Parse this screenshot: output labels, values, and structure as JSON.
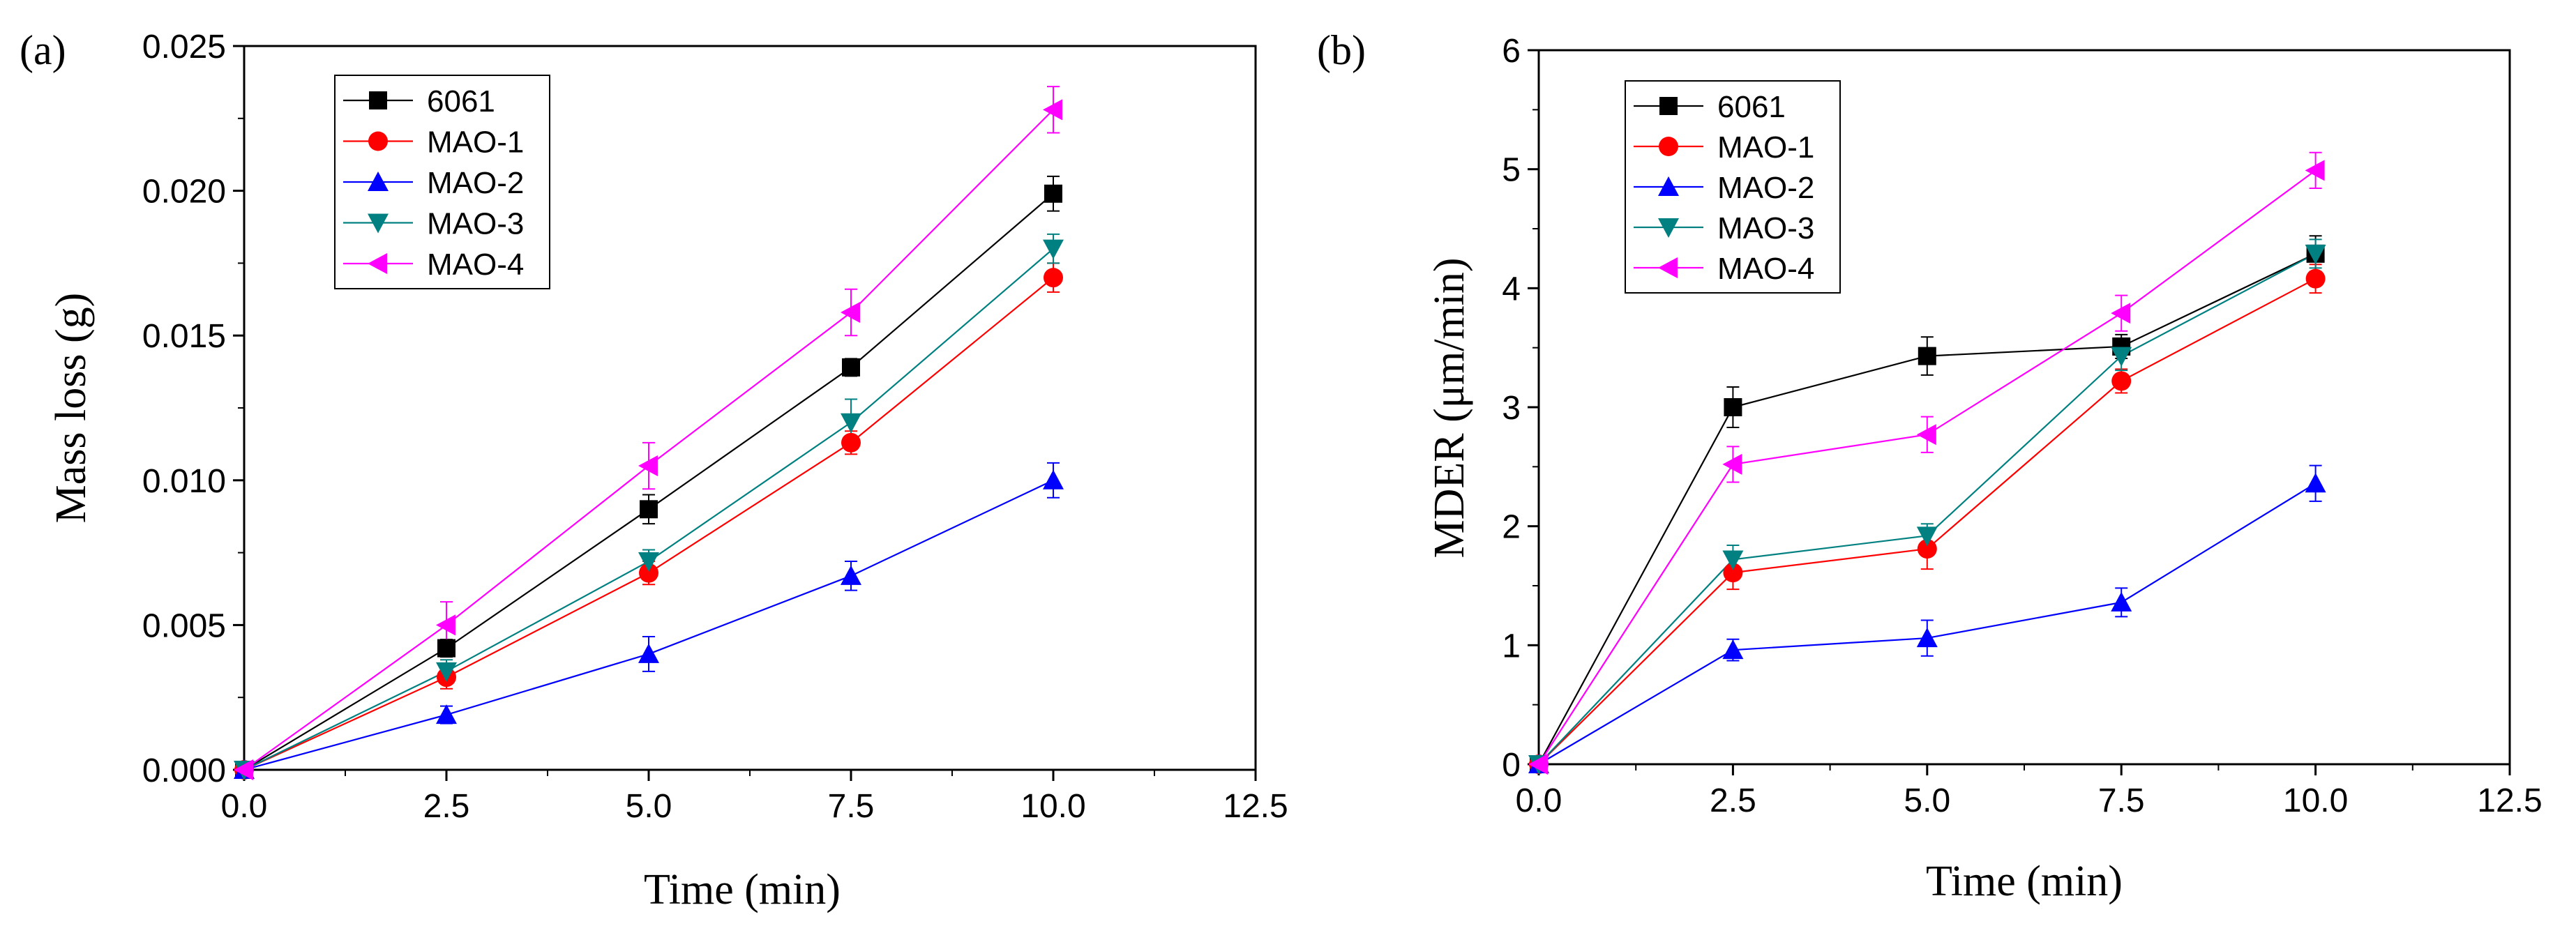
{
  "chart_data": [
    {
      "type": "line",
      "panel_label": "(a)",
      "xlabel": "Time  (min)",
      "ylabel": "Mass loss  (g)",
      "xlim": [
        0,
        12.5
      ],
      "ylim": [
        0,
        0.025
      ],
      "xticks": [
        0,
        2.5,
        5,
        7.5,
        10,
        12.5
      ],
      "xtick_labels": [
        "0.0",
        "2.5",
        "5.0",
        "7.5",
        "10.0",
        "12.5"
      ],
      "yticks": [
        0,
        0.005,
        0.01,
        0.015,
        0.02,
        0.025
      ],
      "ytick_labels": [
        "0.000",
        "0.005",
        "0.010",
        "0.015",
        "0.020",
        "0.025"
      ],
      "legend_position": "top-left",
      "x": [
        0,
        2.5,
        5,
        7.5,
        10
      ],
      "series": [
        {
          "name": "6061",
          "color": "#000000",
          "marker": "square",
          "values": [
            0,
            0.0042,
            0.009,
            0.0139,
            0.0199
          ],
          "errors": [
            0,
            0.0003,
            0.0005,
            0.0003,
            0.0006
          ]
        },
        {
          "name": "MAO-1",
          "color": "#ff0000",
          "marker": "circle",
          "values": [
            0,
            0.0032,
            0.0068,
            0.0113,
            0.017
          ],
          "errors": [
            0,
            0.0004,
            0.0004,
            0.0004,
            0.0005
          ]
        },
        {
          "name": "MAO-2",
          "color": "#0000ff",
          "marker": "triangle-up",
          "values": [
            0,
            0.0019,
            0.004,
            0.0067,
            0.01
          ],
          "errors": [
            0,
            0.0003,
            0.0006,
            0.0005,
            0.0006
          ]
        },
        {
          "name": "MAO-3",
          "color": "#008080",
          "marker": "triangle-down",
          "values": [
            0,
            0.0034,
            0.0072,
            0.012,
            0.018
          ],
          "errors": [
            0,
            0.0004,
            0.0004,
            0.0008,
            0.0005
          ]
        },
        {
          "name": "MAO-4",
          "color": "#ff00ff",
          "marker": "triangle-left",
          "values": [
            0,
            0.005,
            0.0105,
            0.0158,
            0.0228
          ],
          "errors": [
            0,
            0.0008,
            0.0008,
            0.0008,
            0.0008
          ]
        }
      ]
    },
    {
      "type": "line",
      "panel_label": "(b)",
      "xlabel": "Time  (min)",
      "ylabel": "MDER  (μm/min)",
      "xlim": [
        0,
        12.5
      ],
      "ylim": [
        0,
        6
      ],
      "xticks": [
        0,
        2.5,
        5,
        7.5,
        10,
        12.5
      ],
      "xtick_labels": [
        "0.0",
        "2.5",
        "5.0",
        "7.5",
        "10.0",
        "12.5"
      ],
      "yticks": [
        0,
        1,
        2,
        3,
        4,
        5,
        6
      ],
      "ytick_labels": [
        "0",
        "1",
        "2",
        "3",
        "4",
        "5",
        "6"
      ],
      "legend_position": "top-left",
      "x": [
        0,
        2.5,
        5,
        7.5,
        10
      ],
      "series": [
        {
          "name": "6061",
          "color": "#000000",
          "marker": "square",
          "values": [
            0,
            3.0,
            3.43,
            3.51,
            4.29
          ],
          "errors": [
            0,
            0.17,
            0.16,
            0.1,
            0.15
          ]
        },
        {
          "name": "MAO-1",
          "color": "#ff0000",
          "marker": "circle",
          "values": [
            0,
            1.61,
            1.81,
            3.22,
            4.08
          ],
          "errors": [
            0,
            0.14,
            0.17,
            0.1,
            0.12
          ]
        },
        {
          "name": "MAO-2",
          "color": "#0000ff",
          "marker": "triangle-up",
          "values": [
            0,
            0.96,
            1.06,
            1.36,
            2.36
          ],
          "errors": [
            0,
            0.09,
            0.15,
            0.12,
            0.15
          ]
        },
        {
          "name": "MAO-3",
          "color": "#008080",
          "marker": "triangle-down",
          "values": [
            0,
            1.72,
            1.92,
            3.43,
            4.29
          ],
          "errors": [
            0,
            0.12,
            0.1,
            0.12,
            0.12
          ]
        },
        {
          "name": "MAO-4",
          "color": "#ff00ff",
          "marker": "triangle-left",
          "values": [
            0,
            2.52,
            2.77,
            3.79,
            4.99
          ],
          "errors": [
            0,
            0.15,
            0.15,
            0.15,
            0.15
          ]
        }
      ]
    }
  ]
}
